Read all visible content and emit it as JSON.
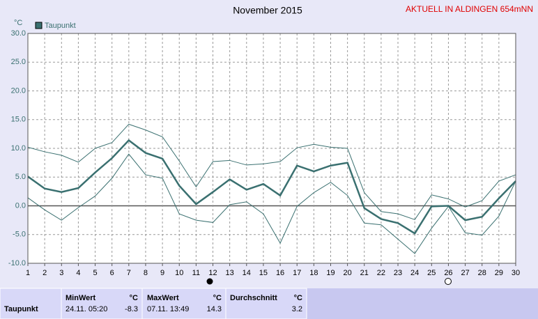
{
  "chart_data": {
    "type": "line",
    "title": "November 2015",
    "subtitle": "AKTUELL IN ALDINGEN 654mNN",
    "y_label": "°C",
    "x": [
      1,
      2,
      3,
      4,
      5,
      6,
      7,
      8,
      9,
      10,
      11,
      12,
      13,
      14,
      15,
      16,
      17,
      18,
      19,
      20,
      21,
      22,
      23,
      24,
      25,
      26,
      27,
      28,
      29,
      30
    ],
    "xlim": [
      1,
      30
    ],
    "xticks": [
      1,
      2,
      3,
      4,
      5,
      6,
      7,
      8,
      9,
      10,
      11,
      12,
      13,
      14,
      15,
      16,
      17,
      18,
      19,
      20,
      21,
      22,
      23,
      24,
      25,
      26,
      27,
      28,
      29,
      30
    ],
    "ylim": [
      -10,
      30
    ],
    "yticks": [
      {
        "value": -10,
        "label": "-10.0"
      },
      {
        "value": -5,
        "label": "-5.0"
      },
      {
        "value": 0,
        "label": "0.0"
      },
      {
        "value": 5,
        "label": "5.0"
      },
      {
        "value": 10,
        "label": "10.0"
      },
      {
        "value": 15,
        "label": "15.0"
      },
      {
        "value": 20,
        "label": "20.0"
      },
      {
        "value": 25,
        "label": "25.0"
      },
      {
        "value": 30,
        "label": "30.0"
      }
    ],
    "grid": true,
    "legend": "top-left",
    "series": [
      {
        "name": "Taupunkt",
        "color": "#3a7070",
        "values": [
          5.1,
          3.0,
          2.4,
          3.1,
          5.8,
          8.3,
          11.4,
          9.2,
          8.2,
          3.5,
          0.3,
          2.4,
          4.6,
          2.8,
          3.8,
          1.8,
          7.0,
          6.0,
          7.0,
          7.5,
          -0.4,
          -2.3,
          -3.0,
          -4.8,
          -0.1,
          0.0,
          -2.5,
          -1.9,
          1.3,
          4.3
        ]
      },
      {
        "color": "#3a7070",
        "values": [
          10.2,
          9.4,
          8.8,
          7.6,
          10.0,
          11.0,
          14.2,
          13.2,
          12.0,
          7.8,
          3.3,
          7.7,
          7.9,
          7.1,
          7.3,
          7.7,
          10.1,
          10.7,
          10.2,
          10.0,
          2.3,
          -1.0,
          -1.4,
          -2.4,
          1.9,
          1.2,
          -0.2,
          0.9,
          4.3,
          5.4
        ]
      },
      {
        "color": "#3a7070",
        "values": [
          1.4,
          -0.7,
          -2.5,
          -0.3,
          1.7,
          4.8,
          9.0,
          5.4,
          4.8,
          -1.4,
          -2.5,
          -2.9,
          0.2,
          0.7,
          -1.4,
          -6.5,
          -0.1,
          2.3,
          4.1,
          1.8,
          -3.0,
          -3.3,
          -5.8,
          -8.3,
          -3.9,
          -0.1,
          -4.7,
          -5.1,
          -1.8,
          4.3
        ]
      }
    ]
  },
  "table": {
    "header": [
      "MinWert",
      "°C",
      "MaxWert",
      "°C",
      "Durchschnitt",
      "°C"
    ],
    "rows": [
      [
        "Taupunkt",
        "24.11.  05:20",
        "-8.3",
        "07.11.  13:49",
        "14.3",
        "3.2"
      ]
    ]
  }
}
